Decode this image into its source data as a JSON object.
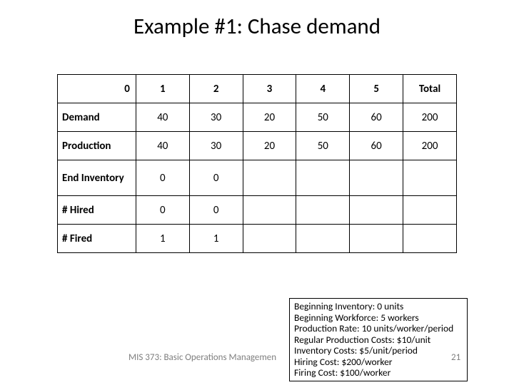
{
  "title": "Example #1: Chase demand",
  "table": {
    "header": [
      "0",
      "1",
      "2",
      "3",
      "4",
      "5",
      "Total"
    ],
    "rows": [
      {
        "label": "Demand",
        "cells": [
          "40",
          "30",
          "20",
          "50",
          "60",
          "200"
        ]
      },
      {
        "label": "Production",
        "cells": [
          "40",
          "30",
          "20",
          "50",
          "60",
          "200"
        ]
      },
      {
        "label": "End Inventory",
        "cells": [
          "0",
          "0",
          "",
          "",
          "",
          ""
        ],
        "tall": true
      },
      {
        "label": "# Hired",
        "cells": [
          "0",
          "0",
          "",
          "",
          "",
          ""
        ]
      },
      {
        "label": "# Fired",
        "cells": [
          "1",
          "1",
          "",
          "",
          "",
          ""
        ]
      }
    ]
  },
  "info": {
    "lines": [
      "Beginning Inventory: 0 units",
      "Beginning Workforce: 5 workers",
      "Production Rate: 10 units/worker/period",
      "Regular Production Costs: $10/unit",
      "Inventory Costs: $5/unit/period",
      "Hiring Cost: $200/worker",
      "Firing Cost: $100/worker"
    ]
  },
  "footer": "MIS 373: Basic Operations Managemen",
  "pagenum": "21",
  "colors": {
    "background": "#ffffff",
    "text": "#000000",
    "footer_text": "#7f7f7f",
    "border": "#000000"
  }
}
